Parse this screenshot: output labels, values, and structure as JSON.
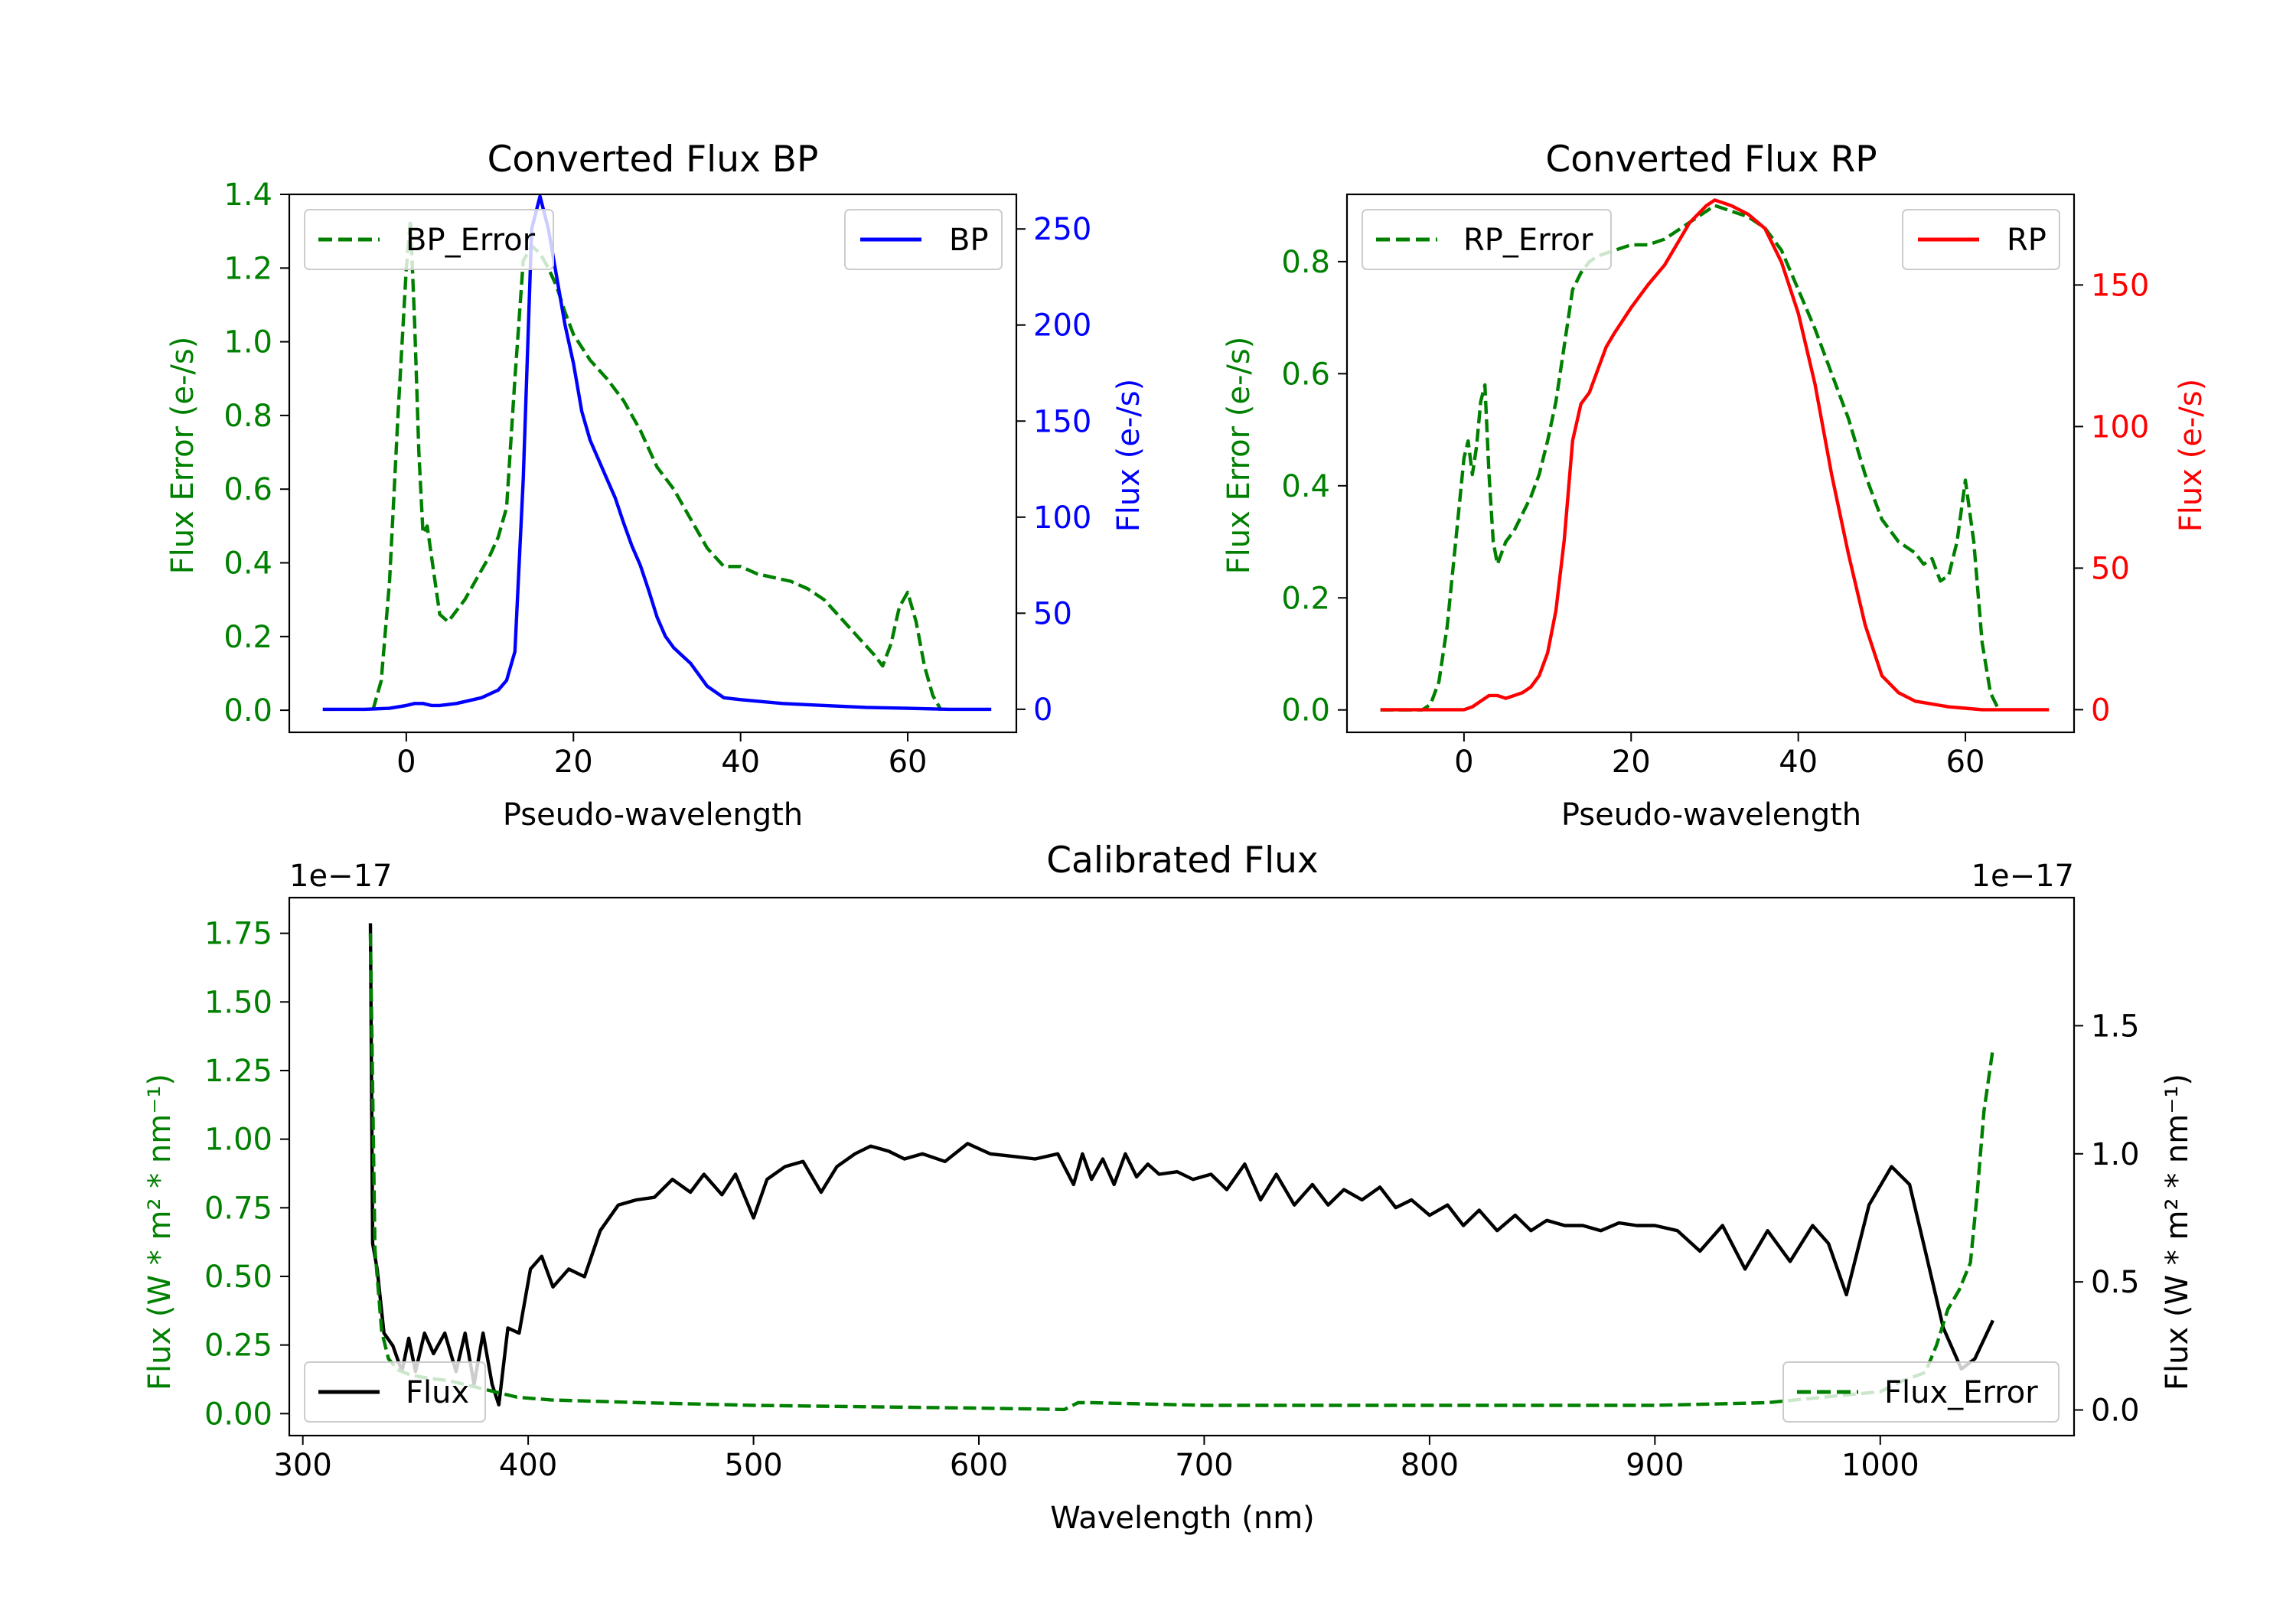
{
  "colors": {
    "bp": "#0000ff",
    "rp": "#ff0000",
    "error": "#008000",
    "flux": "#000000"
  },
  "chart_data": [
    {
      "id": "bp",
      "type": "line",
      "title": "Converted Flux BP",
      "xlabel": "Pseudo-wavelength",
      "ylabel_left": "Flux Error (e-/s)",
      "ylabel_right": "Flux (e-/s)",
      "xlim": [
        -14,
        73
      ],
      "ylim_left": [
        -0.06,
        1.4
      ],
      "ylim_right": [
        -12,
        268
      ],
      "xticks": [
        0,
        20,
        40,
        60
      ],
      "yticks_left": [
        0.0,
        0.2,
        0.4,
        0.6,
        0.8,
        1.0,
        1.2,
        1.4
      ],
      "yticks_right": [
        0,
        50,
        100,
        150,
        200,
        250
      ],
      "ytick_labels_left": [
        "0.0",
        "0.2",
        "0.4",
        "0.6",
        "0.8",
        "1.0",
        "1.2",
        "1.4"
      ],
      "ytick_labels_right": [
        "0",
        "50",
        "100",
        "150",
        "200",
        "250"
      ],
      "left_axis_color": "#008000",
      "right_axis_color": "#0000ff",
      "legend_left": "BP_Error",
      "legend_right": "BP",
      "series": [
        {
          "name": "BP_Error",
          "axis": "left",
          "style": "dashed",
          "color": "#008000",
          "x": [
            -4,
            -3,
            -2,
            -1,
            0,
            0.5,
            1,
            1.5,
            2,
            2.5,
            3,
            4,
            5,
            6,
            7,
            8,
            9,
            10,
            11,
            12,
            13,
            14,
            15,
            16,
            17,
            18,
            19,
            20,
            22,
            24,
            26,
            28,
            30,
            32,
            34,
            36,
            38,
            40,
            42,
            44,
            46,
            48,
            50,
            52,
            54,
            56,
            57,
            58,
            59,
            60,
            61,
            62,
            63,
            64
          ],
          "y": [
            0.0,
            0.08,
            0.35,
            0.8,
            1.2,
            1.33,
            1.05,
            0.7,
            0.48,
            0.5,
            0.42,
            0.26,
            0.24,
            0.27,
            0.3,
            0.34,
            0.38,
            0.42,
            0.47,
            0.55,
            0.9,
            1.22,
            1.26,
            1.24,
            1.2,
            1.15,
            1.08,
            1.02,
            0.95,
            0.9,
            0.84,
            0.76,
            0.66,
            0.6,
            0.52,
            0.44,
            0.39,
            0.39,
            0.37,
            0.36,
            0.35,
            0.33,
            0.3,
            0.25,
            0.2,
            0.15,
            0.12,
            0.18,
            0.28,
            0.32,
            0.24,
            0.12,
            0.04,
            0.0
          ]
        },
        {
          "name": "BP",
          "axis": "right",
          "style": "solid",
          "color": "#0000ff",
          "x": [
            -10,
            -5,
            -2,
            0,
            1,
            2,
            3,
            4,
            6,
            8,
            9,
            10,
            11,
            12,
            13,
            14,
            15,
            16,
            17,
            18,
            19,
            20,
            21,
            22,
            23,
            24,
            25,
            26,
            27,
            28,
            29,
            30,
            31,
            32,
            33,
            34,
            35,
            36,
            38,
            40,
            45,
            50,
            55,
            60,
            65,
            70
          ],
          "y": [
            0,
            0,
            0.5,
            2,
            3,
            3,
            2,
            2,
            3,
            5,
            6,
            8,
            10,
            15,
            30,
            120,
            250,
            267,
            250,
            225,
            200,
            180,
            155,
            140,
            130,
            120,
            110,
            97,
            85,
            75,
            62,
            48,
            38,
            32,
            28,
            24,
            18,
            12,
            6,
            5,
            3,
            2,
            1,
            0.5,
            0,
            0
          ]
        }
      ]
    },
    {
      "id": "rp",
      "type": "line",
      "title": "Converted Flux RP",
      "xlabel": "Pseudo-wavelength",
      "ylabel_left": "Flux Error (e-/s)",
      "ylabel_right": "Flux (e-/s)",
      "xlim": [
        -14,
        73
      ],
      "ylim_left": [
        -0.04,
        0.92
      ],
      "ylim_right": [
        -8,
        182
      ],
      "xticks": [
        0,
        20,
        40,
        60
      ],
      "yticks_left": [
        0.0,
        0.2,
        0.4,
        0.6,
        0.8
      ],
      "yticks_right": [
        0,
        50,
        100,
        150
      ],
      "ytick_labels_left": [
        "0.0",
        "0.2",
        "0.4",
        "0.6",
        "0.8"
      ],
      "ytick_labels_right": [
        "0",
        "50",
        "100",
        "150"
      ],
      "left_axis_color": "#008000",
      "right_axis_color": "#ff0000",
      "legend_left": "RP_Error",
      "legend_right": "RP",
      "series": [
        {
          "name": "RP_Error",
          "axis": "left",
          "style": "dashed",
          "color": "#008000",
          "x": [
            -10,
            -5,
            -4,
            -3,
            -2,
            -1,
            0,
            0.5,
            1,
            1.5,
            2,
            2.5,
            3,
            3.5,
            4,
            5,
            6,
            7,
            8,
            9,
            10,
            11,
            12,
            13,
            14,
            15,
            16,
            18,
            20,
            22,
            24,
            26,
            28,
            30,
            32,
            34,
            36,
            38,
            40,
            42,
            44,
            46,
            48,
            50,
            52,
            54,
            55,
            56,
            57,
            58,
            59,
            60,
            61,
            62,
            63,
            64
          ],
          "y": [
            0.0,
            0.0,
            0.01,
            0.05,
            0.15,
            0.3,
            0.45,
            0.48,
            0.42,
            0.47,
            0.55,
            0.58,
            0.42,
            0.3,
            0.26,
            0.3,
            0.32,
            0.35,
            0.38,
            0.42,
            0.48,
            0.55,
            0.65,
            0.75,
            0.78,
            0.8,
            0.81,
            0.82,
            0.83,
            0.83,
            0.84,
            0.86,
            0.88,
            0.9,
            0.89,
            0.88,
            0.86,
            0.82,
            0.75,
            0.68,
            0.6,
            0.52,
            0.42,
            0.34,
            0.3,
            0.28,
            0.26,
            0.27,
            0.23,
            0.24,
            0.3,
            0.41,
            0.3,
            0.12,
            0.03,
            0.0
          ]
        },
        {
          "name": "RP",
          "axis": "right",
          "style": "solid",
          "color": "#ff0000",
          "x": [
            -10,
            -5,
            0,
            1,
            2,
            3,
            4,
            5,
            6,
            7,
            8,
            9,
            10,
            11,
            12,
            13,
            14,
            15,
            16,
            17,
            18,
            20,
            22,
            24,
            26,
            27,
            28,
            29,
            30,
            31,
            32,
            34,
            36,
            38,
            40,
            42,
            44,
            46,
            48,
            50,
            52,
            54,
            56,
            58,
            60,
            62,
            65,
            70
          ],
          "y": [
            0,
            0,
            0,
            1,
            3,
            5,
            5,
            4,
            5,
            6,
            8,
            12,
            20,
            35,
            60,
            95,
            108,
            112,
            120,
            128,
            133,
            142,
            150,
            157,
            167,
            172,
            175,
            178,
            180,
            179,
            178,
            175,
            170,
            158,
            140,
            115,
            83,
            55,
            30,
            12,
            6,
            3,
            2,
            1,
            0.5,
            0,
            0,
            0
          ]
        }
      ]
    },
    {
      "id": "calibrated",
      "type": "line",
      "title": "Calibrated Flux",
      "xlabel": "Wavelength (nm)",
      "ylabel_left": "Flux (W * m² * nm⁻¹)",
      "ylabel_right": "Flux (W * m² * nm⁻¹)",
      "offset_left": "1e−17",
      "offset_right": "1e−17",
      "xlim": [
        294,
        1086
      ],
      "ylim_left": [
        -0.08,
        1.88
      ],
      "ylim_right": [
        -0.1,
        2.0
      ],
      "xticks": [
        300,
        400,
        500,
        600,
        700,
        800,
        900,
        1000
      ],
      "yticks_left": [
        0.0,
        0.25,
        0.5,
        0.75,
        1.0,
        1.25,
        1.5,
        1.75
      ],
      "yticks_right": [
        0.0,
        0.5,
        1.0,
        1.5
      ],
      "ytick_labels_left": [
        "0.00",
        "0.25",
        "0.50",
        "0.75",
        "1.00",
        "1.25",
        "1.50",
        "1.75"
      ],
      "ytick_labels_right": [
        "0.0",
        "0.5",
        "1.0",
        "1.5"
      ],
      "left_axis_color": "#008000",
      "right_axis_color": "#000000",
      "legend_left": "Flux",
      "legend_right": "Flux_Error",
      "series": [
        {
          "name": "Flux",
          "axis": "right",
          "style": "solid",
          "color": "#000000",
          "x": [
            330,
            331,
            333,
            336,
            340,
            344,
            347,
            350,
            354,
            358,
            363,
            368,
            372,
            376,
            380,
            384,
            387,
            391,
            396,
            401,
            406,
            411,
            418,
            425,
            432,
            440,
            448,
            456,
            464,
            472,
            478,
            486,
            492,
            500,
            506,
            514,
            522,
            530,
            537,
            545,
            552,
            560,
            567,
            575,
            585,
            595,
            605,
            615,
            625,
            635,
            642,
            646,
            650,
            655,
            660,
            665,
            670,
            675,
            680,
            688,
            695,
            703,
            710,
            718,
            725,
            732,
            740,
            748,
            755,
            762,
            770,
            778,
            785,
            792,
            800,
            808,
            815,
            822,
            830,
            838,
            845,
            852,
            860,
            868,
            876,
            884,
            892,
            900,
            910,
            920,
            930,
            940,
            950,
            960,
            970,
            977,
            985,
            995,
            1005,
            1013,
            1020,
            1028,
            1036,
            1042,
            1050
          ],
          "y": [
            1.9,
            0.65,
            0.55,
            0.3,
            0.25,
            0.15,
            0.28,
            0.15,
            0.3,
            0.22,
            0.3,
            0.15,
            0.3,
            0.1,
            0.3,
            0.1,
            0.02,
            0.32,
            0.3,
            0.55,
            0.6,
            0.48,
            0.55,
            0.52,
            0.7,
            0.8,
            0.82,
            0.83,
            0.9,
            0.85,
            0.92,
            0.84,
            0.92,
            0.75,
            0.9,
            0.95,
            0.97,
            0.85,
            0.95,
            1.0,
            1.03,
            1.01,
            0.98,
            1.0,
            0.97,
            1.04,
            1.0,
            0.99,
            0.98,
            1.0,
            0.88,
            1.0,
            0.9,
            0.98,
            0.88,
            1.0,
            0.91,
            0.96,
            0.92,
            0.93,
            0.9,
            0.92,
            0.86,
            0.96,
            0.82,
            0.92,
            0.8,
            0.88,
            0.8,
            0.86,
            0.82,
            0.87,
            0.79,
            0.82,
            0.76,
            0.8,
            0.72,
            0.78,
            0.7,
            0.76,
            0.7,
            0.74,
            0.72,
            0.72,
            0.7,
            0.73,
            0.72,
            0.72,
            0.7,
            0.62,
            0.72,
            0.55,
            0.7,
            0.58,
            0.72,
            0.65,
            0.45,
            0.8,
            0.95,
            0.88,
            0.62,
            0.32,
            0.16,
            0.2,
            0.35
          ]
        },
        {
          "name": "Flux_Error",
          "axis": "left",
          "style": "dashed",
          "color": "#008000",
          "x": [
            330,
            332,
            335,
            338,
            342,
            348,
            355,
            365,
            375,
            385,
            395,
            410,
            430,
            450,
            500,
            550,
            600,
            638,
            644,
            650,
            700,
            800,
            900,
            950,
            1000,
            1010,
            1020,
            1025,
            1030,
            1035,
            1040,
            1043,
            1046,
            1050
          ],
          "y": [
            1.75,
            0.6,
            0.3,
            0.2,
            0.16,
            0.14,
            0.13,
            0.12,
            0.1,
            0.08,
            0.06,
            0.05,
            0.045,
            0.04,
            0.03,
            0.025,
            0.02,
            0.015,
            0.04,
            0.04,
            0.03,
            0.03,
            0.03,
            0.04,
            0.08,
            0.12,
            0.15,
            0.25,
            0.38,
            0.45,
            0.55,
            0.8,
            1.1,
            1.33
          ]
        }
      ]
    }
  ]
}
